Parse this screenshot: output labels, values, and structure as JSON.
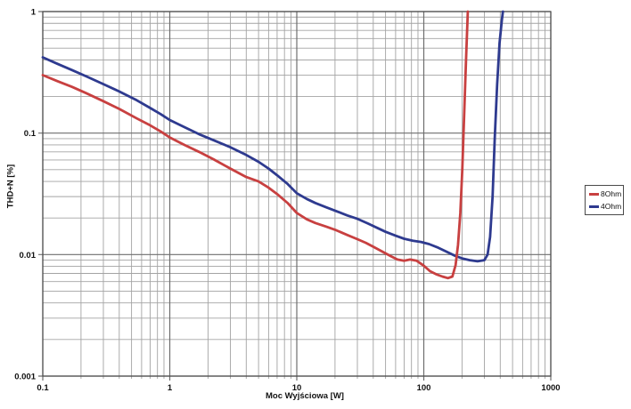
{
  "chart_data": {
    "type": "line",
    "title": "",
    "xlabel": "Moc Wyjściowa [W]",
    "ylabel": "THD+N [%]",
    "x_scale": "log",
    "y_scale": "log",
    "xlim": [
      0.1,
      1000
    ],
    "ylim": [
      0.001,
      1
    ],
    "x_ticks": [
      "0.1",
      "1",
      "10",
      "100",
      "1000"
    ],
    "y_ticks": [
      "1",
      "0.1",
      "0.01",
      "0.001"
    ],
    "grid": "log major and minor gridlines on both axes",
    "legend_position": "right-outside",
    "series": [
      {
        "name": "8Ohm",
        "color": "#c84040",
        "points": [
          [
            0.1,
            0.3
          ],
          [
            0.13,
            0.268
          ],
          [
            0.17,
            0.24
          ],
          [
            0.22,
            0.213
          ],
          [
            0.3,
            0.183
          ],
          [
            0.4,
            0.158
          ],
          [
            0.55,
            0.132
          ],
          [
            0.7,
            0.116
          ],
          [
            0.85,
            0.103
          ],
          [
            1.0,
            0.092
          ],
          [
            1.3,
            0.08
          ],
          [
            1.7,
            0.07
          ],
          [
            2.2,
            0.061
          ],
          [
            3.0,
            0.051
          ],
          [
            4.0,
            0.0435
          ],
          [
            5.0,
            0.04
          ],
          [
            6.0,
            0.0355
          ],
          [
            7.0,
            0.0315
          ],
          [
            8.5,
            0.0265
          ],
          [
            10,
            0.022
          ],
          [
            12,
            0.0195
          ],
          [
            14,
            0.0182
          ],
          [
            17,
            0.017
          ],
          [
            20,
            0.016
          ],
          [
            25,
            0.0145
          ],
          [
            30,
            0.0134
          ],
          [
            35,
            0.0125
          ],
          [
            40,
            0.0116
          ],
          [
            47,
            0.0106
          ],
          [
            55,
            0.0097
          ],
          [
            62,
            0.0091
          ],
          [
            70,
            0.0089
          ],
          [
            78,
            0.0091
          ],
          [
            88,
            0.0089
          ],
          [
            100,
            0.0081
          ],
          [
            112,
            0.0073
          ],
          [
            125,
            0.0069
          ],
          [
            140,
            0.0066
          ],
          [
            155,
            0.0064
          ],
          [
            168,
            0.0066
          ],
          [
            178,
            0.0082
          ],
          [
            186,
            0.012
          ],
          [
            194,
            0.022
          ],
          [
            201,
            0.05
          ],
          [
            208,
            0.14
          ],
          [
            215,
            0.4
          ],
          [
            222,
            1.0
          ]
        ]
      },
      {
        "name": "4Ohm",
        "color": "#2e3a8f",
        "points": [
          [
            0.1,
            0.42
          ],
          [
            0.13,
            0.372
          ],
          [
            0.17,
            0.33
          ],
          [
            0.22,
            0.293
          ],
          [
            0.3,
            0.253
          ],
          [
            0.4,
            0.22
          ],
          [
            0.55,
            0.186
          ],
          [
            0.7,
            0.161
          ],
          [
            0.85,
            0.143
          ],
          [
            1.0,
            0.128
          ],
          [
            1.3,
            0.112
          ],
          [
            1.7,
            0.098
          ],
          [
            2.2,
            0.0875
          ],
          [
            3.0,
            0.0765
          ],
          [
            4.0,
            0.066
          ],
          [
            5.0,
            0.058
          ],
          [
            6.0,
            0.051
          ],
          [
            7.0,
            0.045
          ],
          [
            8.5,
            0.038
          ],
          [
            10,
            0.032
          ],
          [
            12,
            0.0287
          ],
          [
            14,
            0.0266
          ],
          [
            17,
            0.0245
          ],
          [
            20,
            0.023
          ],
          [
            25,
            0.021
          ],
          [
            30,
            0.0197
          ],
          [
            36,
            0.0181
          ],
          [
            43,
            0.0166
          ],
          [
            50,
            0.0154
          ],
          [
            60,
            0.0143
          ],
          [
            70,
            0.0135
          ],
          [
            82,
            0.013
          ],
          [
            95,
            0.0127
          ],
          [
            110,
            0.0122
          ],
          [
            130,
            0.0114
          ],
          [
            150,
            0.0106
          ],
          [
            175,
            0.0098
          ],
          [
            200,
            0.0093
          ],
          [
            230,
            0.009
          ],
          [
            265,
            0.0088
          ],
          [
            300,
            0.009
          ],
          [
            318,
            0.01
          ],
          [
            333,
            0.014
          ],
          [
            348,
            0.03
          ],
          [
            362,
            0.09
          ],
          [
            378,
            0.25
          ],
          [
            395,
            0.55
          ],
          [
            412,
            0.85
          ],
          [
            420,
            1.0
          ]
        ]
      }
    ]
  }
}
